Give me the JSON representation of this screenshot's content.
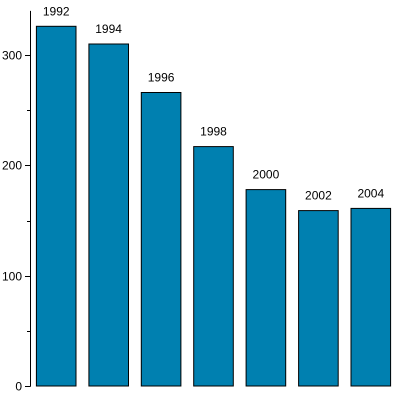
{
  "chart_data": {
    "type": "bar",
    "categories": [
      "1992",
      "1994",
      "1996",
      "1998",
      "2000",
      "2002",
      "2004"
    ],
    "values": [
      326,
      310,
      266,
      217,
      178,
      159,
      161
    ],
    "ylim": [
      0,
      340
    ],
    "yticks": [
      0,
      100,
      200,
      300
    ],
    "ytick_labels": [
      "0",
      "100",
      "200",
      "300"
    ],
    "y_minor_ticks": [
      50,
      150,
      250
    ],
    "grid": false,
    "legend": "none",
    "bar_color": "#0080b0",
    "bar_edge_color": "#000000",
    "data_labels": [
      "1992",
      "1994",
      "1996",
      "1998",
      "2000",
      "2002",
      "2004"
    ]
  }
}
